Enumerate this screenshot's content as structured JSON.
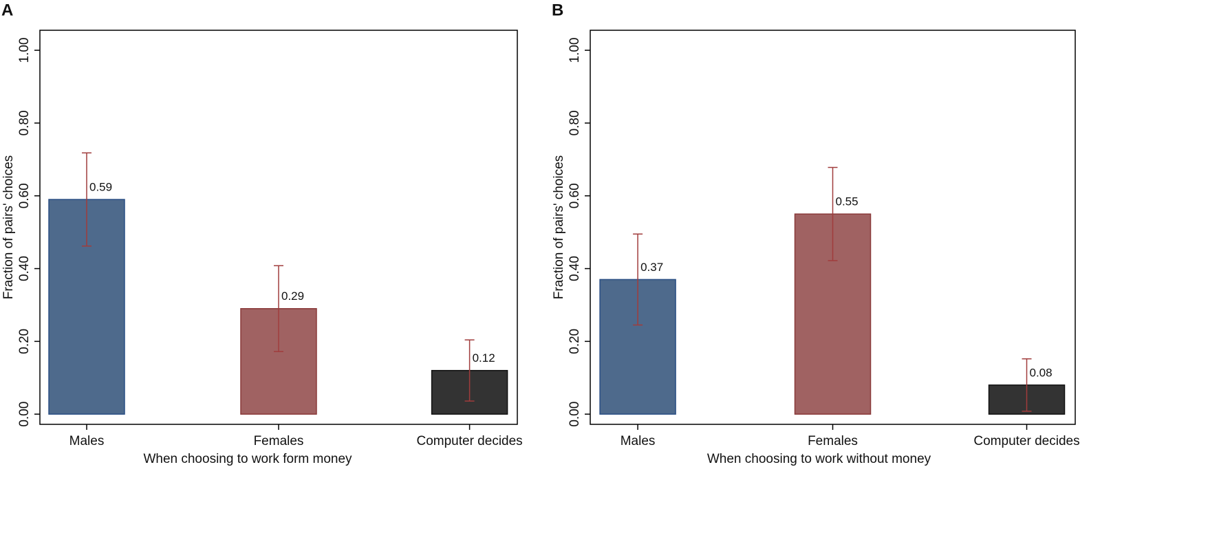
{
  "chart_data": [
    {
      "type": "bar",
      "panel": "A",
      "ylabel": "Fraction of pairs' choices",
      "xlabel": "When choosing to work form money",
      "categories": [
        "Males",
        "Females",
        "Computer decides"
      ],
      "values": [
        0.59,
        0.29,
        0.12
      ],
      "errors": [
        0.128,
        0.118,
        0.084
      ],
      "colors": [
        "#4e6a8c",
        "#a06262",
        "#333333"
      ],
      "edge_colors": [
        "#2a4f85",
        "#8a3a3a",
        "#111111"
      ],
      "error_color": "#a03c3c",
      "label_color": "#6b8a7e",
      "ylim": [
        -0.028,
        1.055
      ],
      "yticks": [
        {
          "value": 0,
          "label": "0.00"
        },
        {
          "value": 0.2,
          "label": "0.20"
        },
        {
          "value": 0.4,
          "label": "0.40"
        },
        {
          "value": 0.6,
          "label": "0.60"
        },
        {
          "value": 0.8,
          "label": "0.80"
        },
        {
          "value": 1,
          "label": "1.00"
        }
      ]
    },
    {
      "type": "bar",
      "panel": "B",
      "ylabel": "Fraction of pairs' choices",
      "xlabel": "When choosing to work without money",
      "categories": [
        "Males",
        "Females",
        "Computer decides"
      ],
      "values": [
        0.37,
        0.55,
        0.08
      ],
      "errors": [
        0.125,
        0.128,
        0.072
      ],
      "colors": [
        "#4e6a8c",
        "#a06262",
        "#333333"
      ],
      "edge_colors": [
        "#2a4f85",
        "#8a3a3a",
        "#111111"
      ],
      "error_color": "#a03c3c",
      "label_color": "#6b8a7e",
      "ylim": [
        -0.028,
        1.055
      ],
      "yticks": [
        {
          "value": 0,
          "label": "0.00"
        },
        {
          "value": 0.2,
          "label": "0.20"
        },
        {
          "value": 0.4,
          "label": "0.40"
        },
        {
          "value": 0.6,
          "label": "0.60"
        },
        {
          "value": 0.8,
          "label": "0.80"
        },
        {
          "value": 1,
          "label": "1.00"
        }
      ]
    }
  ]
}
